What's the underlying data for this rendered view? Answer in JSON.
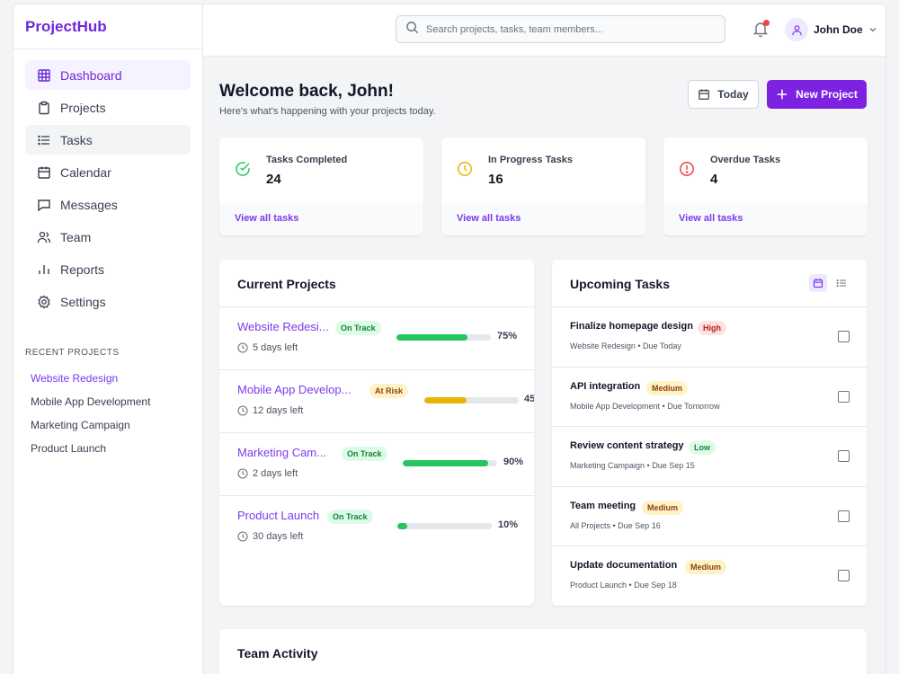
{
  "app": {
    "name": "ProjectHub"
  },
  "sidebar": {
    "items": [
      {
        "label": "Dashboard",
        "icon": "grid-icon"
      },
      {
        "label": "Projects",
        "icon": "clipboard-icon"
      },
      {
        "label": "Tasks",
        "icon": "list-icon"
      },
      {
        "label": "Calendar",
        "icon": "calendar-icon"
      },
      {
        "label": "Messages",
        "icon": "message-icon"
      },
      {
        "label": "Team",
        "icon": "team-icon"
      },
      {
        "label": "Reports",
        "icon": "chart-icon"
      },
      {
        "label": "Settings",
        "icon": "gear-icon"
      }
    ],
    "recent_title": "RECENT PROJECTS",
    "recent": [
      "Website Redesign",
      "Mobile App Development",
      "Marketing Campaign",
      "Product Launch"
    ]
  },
  "topbar": {
    "search_placeholder": "Search projects, tasks, team members...",
    "user_name": "John Doe"
  },
  "header": {
    "title": "Welcome back, John!",
    "subtitle": "Here's what's happening with your projects today.",
    "today_label": "Today",
    "new_project_label": "New Project"
  },
  "stats": [
    {
      "label": "Tasks Completed",
      "value": "24",
      "link": "View all tasks",
      "color": "#22c55e",
      "icon": "check-circle-icon"
    },
    {
      "label": "In Progress Tasks",
      "value": "16",
      "link": "View all tasks",
      "color": "#eab308",
      "icon": "clock-icon"
    },
    {
      "label": "Overdue Tasks",
      "value": "4",
      "link": "View all tasks",
      "color": "#ef4444",
      "icon": "alert-circle-icon"
    }
  ],
  "projects": {
    "title": "Current Projects",
    "rows": [
      {
        "name": "Website Redesi...",
        "status": "On Track",
        "due": "5 days left",
        "progress": 75,
        "progress_label": "75%",
        "color": "#22c55e"
      },
      {
        "name": "Mobile App Develop...",
        "status": "At Risk",
        "due": "12 days left",
        "progress": 45,
        "progress_label": "45",
        "color": "#eab308"
      },
      {
        "name": "Marketing Cam...",
        "status": "On Track",
        "due": "2 days left",
        "progress": 90,
        "progress_label": "90%",
        "color": "#22c55e"
      },
      {
        "name": "Product Launch",
        "status": "On Track",
        "due": "30 days left",
        "progress": 10,
        "progress_label": "10%",
        "color": "#22c55e"
      }
    ]
  },
  "tasks": {
    "title": "Upcoming Tasks",
    "rows": [
      {
        "name": "Finalize homepage design",
        "priority": "High",
        "meta": "Website Redesign • Due Today"
      },
      {
        "name": "API integration",
        "priority": "Medium",
        "meta": "Mobile App Development • Due Tomorrow"
      },
      {
        "name": "Review content strategy",
        "priority": "Low",
        "meta": "Marketing Campaign • Due Sep 15"
      },
      {
        "name": "Team meeting",
        "priority": "Medium",
        "meta": "All Projects • Due Sep 16"
      },
      {
        "name": "Update documentation",
        "priority": "Medium",
        "meta": "Product Launch • Due Sep 18"
      }
    ]
  },
  "activity": {
    "title": "Team Activity"
  },
  "colors": {
    "accent": "#7c22e0",
    "brand": "#6d28d9"
  }
}
